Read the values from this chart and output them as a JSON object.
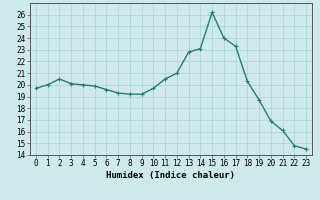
{
  "xlabel": "Humidex (Indice chaleur)",
  "x_values": [
    0,
    1,
    2,
    3,
    4,
    5,
    6,
    7,
    8,
    9,
    10,
    11,
    12,
    13,
    14,
    15,
    16,
    17,
    18,
    19,
    20,
    21,
    22,
    23
  ],
  "y_values": [
    19.7,
    20.0,
    20.5,
    20.1,
    20.0,
    19.9,
    19.6,
    19.3,
    19.2,
    19.2,
    19.7,
    20.5,
    21.0,
    22.8,
    23.1,
    26.2,
    24.0,
    23.3,
    20.3,
    18.7,
    16.9,
    16.1,
    14.8,
    14.5
  ],
  "line_color": "#2d7c6e",
  "marker": "+",
  "marker_size": 3,
  "bg_color": "#ceeaea",
  "grid_color": "#aad4d4",
  "ylim": [
    14,
    27
  ],
  "xlim": [
    -0.5,
    23.5
  ],
  "yticks": [
    14,
    15,
    16,
    17,
    18,
    19,
    20,
    21,
    22,
    23,
    24,
    25,
    26
  ],
  "xticks": [
    0,
    1,
    2,
    3,
    4,
    5,
    6,
    7,
    8,
    9,
    10,
    11,
    12,
    13,
    14,
    15,
    16,
    17,
    18,
    19,
    20,
    21,
    22,
    23
  ],
  "tick_fontsize": 5.5,
  "label_fontsize": 6.5,
  "line_width": 1.0
}
